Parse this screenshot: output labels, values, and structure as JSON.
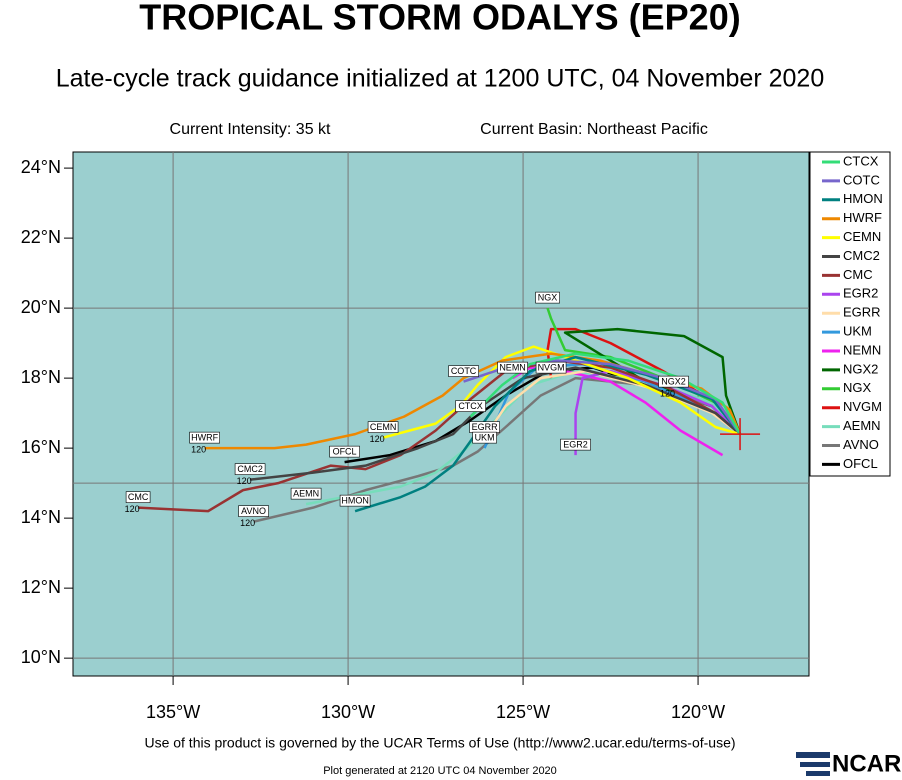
{
  "chart_data": {
    "type": "track",
    "title": "TROPICAL STORM ODALYS (EP20)",
    "subtitle": "Late-cycle track guidance initialized at 1200 UTC, 04 November 2020",
    "intensity": "Current Intensity: 35 kt",
    "basin": "Current Basin: Northeast Pacific",
    "footer": "Use of this product is governed by the UCAR Terms of Use (http://www2.ucar.edu/terms-of-use)",
    "generated": "Plot generated at 2120 UTC   04 November 2020",
    "logo": "NCAR",
    "xlim": [
      -137.86,
      -116.83
    ],
    "ylim": [
      9.49,
      24.46
    ],
    "xticks": [
      {
        "value": -135,
        "label": "135°W"
      },
      {
        "value": -130,
        "label": "130°W"
      },
      {
        "value": -125,
        "label": "125°W"
      },
      {
        "value": -120,
        "label": "120°W"
      }
    ],
    "yticks": [
      {
        "value": 10,
        "label": "10°N"
      },
      {
        "value": 12,
        "label": "12°N"
      },
      {
        "value": 14,
        "label": "14°N"
      },
      {
        "value": 16,
        "label": "16°N"
      },
      {
        "value": 18,
        "label": "18°N"
      },
      {
        "value": 20,
        "label": "20°N"
      },
      {
        "value": 22,
        "label": "22°N"
      },
      {
        "value": 24,
        "label": "24°N"
      }
    ],
    "xgrid": [
      -135,
      -130,
      -125,
      -120
    ],
    "ygrid": [
      10,
      15,
      20
    ],
    "current_position": [
      -118.8,
      16.4
    ],
    "series": [
      {
        "name": "CTCX",
        "color": "#33dd77",
        "x": [
          -118.8,
          -119.3,
          -120.5,
          -122.0,
          -123.5,
          -124.8,
          -125.6,
          -126.5
        ],
        "values": [
          16.4,
          17.3,
          18.0,
          18.5,
          18.7,
          18.4,
          17.8,
          16.9
        ]
      },
      {
        "name": "COTC",
        "color": "#7766cc",
        "x": [
          -118.8,
          -119.5,
          -121.0,
          -122.5,
          -124.0,
          -125.5,
          -126.7
        ],
        "values": [
          16.4,
          17.4,
          18.0,
          18.4,
          18.5,
          18.3,
          17.9
        ]
      },
      {
        "name": "HMON",
        "color": "#008080",
        "x": [
          -118.8,
          -119.6,
          -121.5,
          -123.5,
          -124.8,
          -125.8,
          -126.5,
          -127.0,
          -127.8,
          -128.5,
          -129.8
        ],
        "values": [
          16.4,
          17.4,
          18.1,
          18.6,
          18.2,
          17.2,
          16.2,
          15.5,
          14.9,
          14.6,
          14.2
        ]
      },
      {
        "name": "HWRF",
        "color": "#ee8800",
        "x": [
          -118.8,
          -119.1,
          -119.9,
          -121.4,
          -122.8,
          -124.2,
          -125.6,
          -126.7,
          -127.3,
          -128.4,
          -129.8,
          -131.2,
          -132.1,
          -134.1
        ],
        "values": [
          16.4,
          17.1,
          17.7,
          18.1,
          18.5,
          18.7,
          18.5,
          18.0,
          17.5,
          16.9,
          16.4,
          16.1,
          16.0,
          16.0
        ],
        "end_hour": "120"
      },
      {
        "name": "CEMN",
        "color": "#ffff00",
        "x": [
          -118.8,
          -119.5,
          -120.5,
          -122.0,
          -123.5,
          -124.7,
          -125.5,
          -126.3,
          -126.8,
          -127.5,
          -129.0
        ],
        "values": [
          16.4,
          16.6,
          17.3,
          18.0,
          18.5,
          18.9,
          18.6,
          17.8,
          17.2,
          16.7,
          16.3
        ],
        "end_hour": "120"
      },
      {
        "name": "CMC2",
        "color": "#444444",
        "x": [
          -118.8,
          -119.5,
          -121.5,
          -123.5,
          -125.0,
          -126.2,
          -127.0,
          -128.0,
          -129.5,
          -131.0,
          -132.8
        ],
        "values": [
          16.4,
          17.0,
          17.8,
          18.3,
          18.0,
          17.2,
          16.4,
          16.0,
          15.5,
          15.3,
          15.1
        ],
        "end_hour": "120"
      },
      {
        "name": "CMC",
        "color": "#993333",
        "x": [
          -118.8,
          -119.5,
          -120.8,
          -122.5,
          -124.0,
          -125.5,
          -126.5,
          -127.5,
          -128.5,
          -129.5,
          -130.5,
          -132.0,
          -133.0,
          -134.0,
          -136.0
        ],
        "values": [
          16.4,
          17.0,
          17.7,
          18.3,
          18.5,
          18.2,
          17.4,
          16.5,
          15.8,
          15.4,
          15.5,
          15.0,
          14.8,
          14.2,
          14.3
        ],
        "end_hour": "120"
      },
      {
        "name": "EGR2",
        "color": "#aa44ee",
        "x": [
          -118.8,
          -119.6,
          -121.0,
          -122.5,
          -123.3,
          -123.5,
          -123.5
        ],
        "values": [
          16.4,
          17.2,
          17.8,
          18.2,
          18.0,
          17.0,
          15.8
        ]
      },
      {
        "name": "EGRR",
        "color": "#ffddaa",
        "x": [
          -118.8,
          -119.6,
          -121.3,
          -123.2,
          -124.5,
          -125.5,
          -126.1
        ],
        "values": [
          16.4,
          17.0,
          17.7,
          18.2,
          18.0,
          17.2,
          16.3
        ]
      },
      {
        "name": "UKM",
        "color": "#3399dd",
        "x": [
          -118.8,
          -119.7,
          -121.5,
          -123.3,
          -124.6,
          -125.4,
          -126.1
        ],
        "values": [
          16.4,
          17.1,
          17.9,
          18.4,
          18.3,
          17.6,
          16.0
        ]
      },
      {
        "name": "NEMN",
        "color": "#ee22ee",
        "x": [
          -119.3,
          -120.5,
          -121.5,
          -122.5,
          -123.8,
          -124.8,
          -125.3
        ],
        "values": [
          15.8,
          16.5,
          17.3,
          17.9,
          18.2,
          18.3,
          18.0
        ]
      },
      {
        "name": "NGX2",
        "color": "#006600",
        "x": [
          -118.8,
          -119.2,
          -119.3,
          -120.4,
          -122.3,
          -123.8,
          -122.5,
          -121.5,
          -120.7
        ],
        "values": [
          16.4,
          17.5,
          18.6,
          19.2,
          19.4,
          19.3,
          18.5,
          17.9,
          17.6
        ],
        "end_hour": "120"
      },
      {
        "name": "NGX",
        "color": "#33cc33",
        "x": [
          -118.8,
          -119.5,
          -121.0,
          -122.5,
          -123.8,
          -124.2,
          -124.3
        ],
        "values": [
          16.4,
          17.3,
          18.0,
          18.6,
          18.8,
          19.7,
          20.0
        ]
      },
      {
        "name": "NVGM",
        "color": "#dd1111",
        "x": [
          -118.8,
          -119.5,
          -121.0,
          -122.5,
          -123.5,
          -124.2,
          -124.3,
          -124.2
        ],
        "values": [
          16.4,
          17.3,
          18.2,
          19.0,
          19.4,
          19.4,
          18.8,
          18.0
        ]
      },
      {
        "name": "AEMN",
        "color": "#77ddbb",
        "x": [
          -118.8,
          -119.6,
          -121.5,
          -123.5,
          -124.8,
          -125.8,
          -126.6,
          -127.5,
          -128.5,
          -131.2
        ],
        "values": [
          16.4,
          17.3,
          17.9,
          18.2,
          17.8,
          16.8,
          16.0,
          15.3,
          14.9,
          14.4
        ]
      },
      {
        "name": "AVNO",
        "color": "#777777",
        "x": [
          -118.8,
          -119.6,
          -121.5,
          -123.5,
          -124.5,
          -125.5,
          -126.3,
          -127.0,
          -128.0,
          -129.5,
          -131.0,
          -132.7
        ],
        "values": [
          16.4,
          17.2,
          17.8,
          18.0,
          17.5,
          16.6,
          15.9,
          15.5,
          15.2,
          14.8,
          14.3,
          13.9
        ],
        "end_hour": "120"
      },
      {
        "name": "OFCL",
        "color": "#000000",
        "x": [
          -118.8,
          -119.6,
          -121.5,
          -123.0,
          -124.3,
          -125.5,
          -126.5,
          -127.5,
          -128.8,
          -130.1
        ],
        "values": [
          16.4,
          17.2,
          17.8,
          18.3,
          18.2,
          17.5,
          16.8,
          16.2,
          15.8,
          15.6
        ]
      }
    ]
  }
}
